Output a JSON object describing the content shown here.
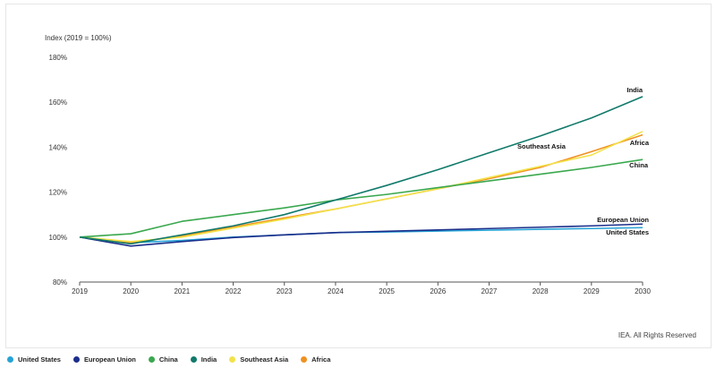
{
  "credit": "IEA. All Rights Reserved",
  "colors": {
    "United States": "#27a3d6",
    "European Union": "#1b2e8a",
    "China": "#3aa84e",
    "India": "#117a6b",
    "Southeast Asia": "#f2e24a",
    "Africa": "#ef9121"
  },
  "chart_data": {
    "type": "line",
    "ylabel": "Index (2019 = 100%)",
    "xlabel": "",
    "x": [
      "2019",
      "2020",
      "2021",
      "2022",
      "2023",
      "2024",
      "2025",
      "2026",
      "2027",
      "2028",
      "2029",
      "2030"
    ],
    "ylim": [
      80,
      180
    ],
    "yticks": [
      80,
      100,
      120,
      140,
      160,
      180
    ],
    "ytick_labels": [
      "80%",
      "100%",
      "120%",
      "140%",
      "160%",
      "180%"
    ],
    "grid": false,
    "series": [
      {
        "name": "United States",
        "values": [
          100,
          97.5,
          98.5,
          100,
          101,
          102,
          102.3,
          102.7,
          103.1,
          103.5,
          103.8,
          104.2
        ]
      },
      {
        "name": "European Union",
        "values": [
          100,
          96,
          98,
          99.8,
          101,
          102,
          102.6,
          103.2,
          103.8,
          104.4,
          105,
          105.8
        ]
      },
      {
        "name": "China",
        "values": [
          100,
          101.5,
          107,
          110,
          113,
          116.5,
          119,
          122,
          125,
          128,
          131,
          134.5
        ]
      },
      {
        "name": "India",
        "values": [
          100,
          97,
          101,
          105,
          110,
          116.5,
          123,
          130,
          137.5,
          145,
          153,
          162.5
        ]
      },
      {
        "name": "Southeast Asia",
        "values": [
          100,
          98,
          100,
          104,
          108,
          112.5,
          117,
          121.5,
          126.5,
          131.5,
          136.5,
          147
        ]
      },
      {
        "name": "Africa",
        "values": [
          100,
          97.5,
          100.5,
          104.5,
          108.5,
          112.5,
          117,
          121.5,
          126,
          131,
          138,
          145.5
        ]
      }
    ],
    "series_labels": [
      {
        "name": "India",
        "text": "India"
      },
      {
        "name": "Southeast Asia",
        "text": "Southeast Asia"
      },
      {
        "name": "Africa",
        "text": "Africa"
      },
      {
        "name": "China",
        "text": "China"
      },
      {
        "name": "European Union",
        "text": "European Union"
      },
      {
        "name": "United States",
        "text": "United States"
      }
    ]
  },
  "legend": [
    {
      "label": "United States"
    },
    {
      "label": "European Union"
    },
    {
      "label": "China"
    },
    {
      "label": "India"
    },
    {
      "label": "Southeast Asia"
    },
    {
      "label": "Africa"
    }
  ]
}
